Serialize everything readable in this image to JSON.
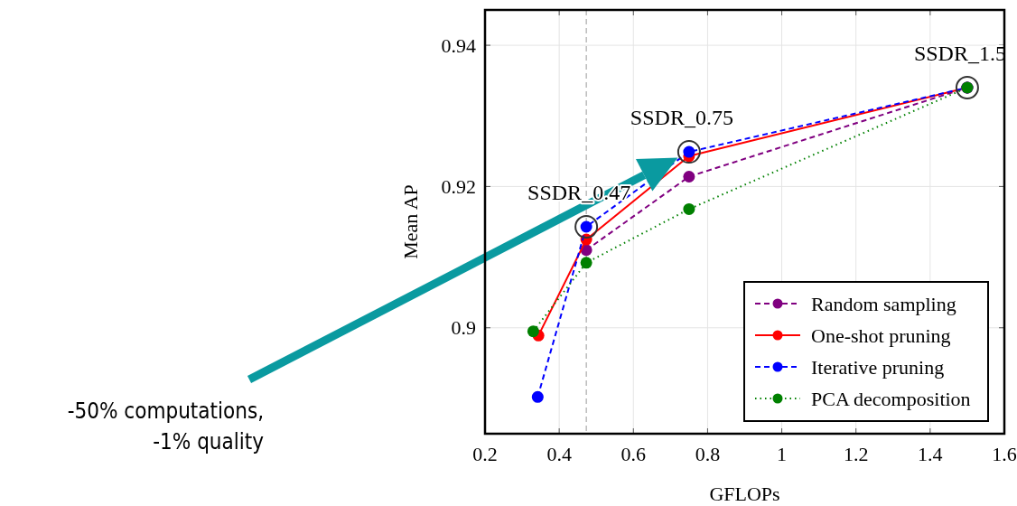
{
  "chart_data": {
    "type": "line",
    "xlabel": "GFLOPs",
    "ylabel": "Mean AP",
    "xlim": [
      0.2,
      1.6
    ],
    "ylim": [
      0.885,
      0.945
    ],
    "xticks": [
      0.2,
      0.4,
      0.6,
      0.8,
      1,
      1.2,
      1.4,
      1.6
    ],
    "yticks": [
      0.9,
      0.92,
      0.94
    ],
    "grid": true,
    "legend": "bottom right",
    "marker": "circle",
    "series": [
      {
        "name": "Random sampling",
        "color": "#800080",
        "line_style": "dashed",
        "x": [
          0.473,
          0.75,
          1.5
        ],
        "values": [
          0.911,
          0.9214,
          0.934
        ]
      },
      {
        "name": "One-shot pruning",
        "color": "#ff0000",
        "line_style": "solid",
        "x": [
          0.344,
          0.473,
          0.75,
          1.5
        ],
        "values": [
          0.8989,
          0.9125,
          0.9243,
          0.934
        ]
      },
      {
        "name": "Iterative pruning",
        "color": "#0000ff",
        "line_style": "dashed",
        "x": [
          0.342,
          0.473,
          0.75,
          1.5
        ],
        "values": [
          0.8902,
          0.9143,
          0.9249,
          0.934
        ]
      },
      {
        "name": "PCA decomposition",
        "color": "#008000",
        "line_style": "dotted",
        "x": [
          0.33,
          0.473,
          0.75,
          1.5
        ],
        "values": [
          0.8995,
          0.9092,
          0.9168,
          0.934
        ]
      }
    ],
    "ref_lines": [
      {
        "axis": "x",
        "value": 0.473,
        "color": "#999999",
        "line_style": "dashed"
      }
    ],
    "annotations": [
      {
        "text": "SSDR_0.47",
        "x": 0.473,
        "y": 0.9143
      },
      {
        "text": "SSDR_0.75",
        "x": 0.75,
        "y": 0.9249
      },
      {
        "text": "SSDR_1.5",
        "x": 1.5,
        "y": 0.934
      },
      "-50% computations,\n-1% quality"
    ]
  }
}
